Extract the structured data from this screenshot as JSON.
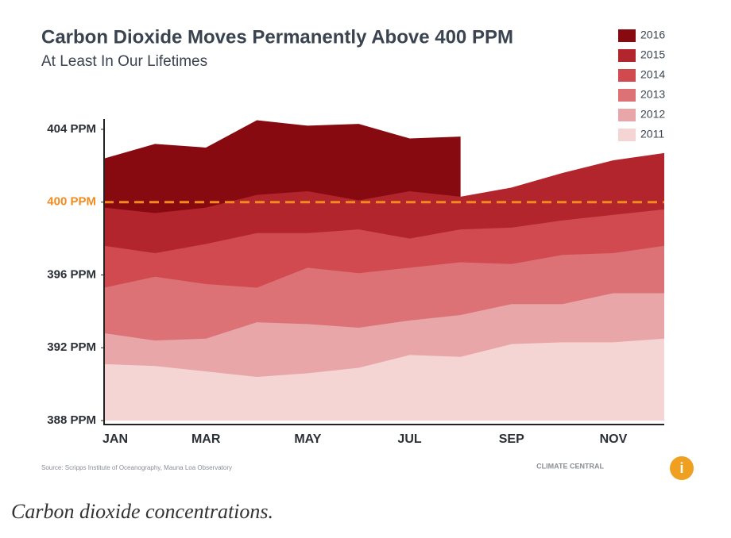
{
  "chart_data": {
    "type": "area",
    "title": "Carbon Dioxide Moves Permanently Above 400 PPM",
    "subtitle": "At Least In Our Lifetimes",
    "categories": [
      "JAN",
      null,
      "MAR",
      null,
      "MAY",
      null,
      "JUL",
      null,
      "SEP",
      null,
      "NOV",
      null
    ],
    "series": [
      {
        "name": "2016",
        "color": "#870a10",
        "values": [
          402.4,
          403.2,
          403.0,
          404.5,
          404.2,
          404.3,
          403.5,
          403.6,
          null,
          null,
          null,
          null
        ]
      },
      {
        "name": "2015",
        "color": "#b3252c",
        "values": [
          399.7,
          399.4,
          399.7,
          400.4,
          400.6,
          400.1,
          400.6,
          400.3,
          400.8,
          401.6,
          402.3,
          402.7
        ]
      },
      {
        "name": "2014",
        "color": "#d04a50",
        "values": [
          397.6,
          397.2,
          397.7,
          398.3,
          398.3,
          398.5,
          398.0,
          398.5,
          398.6,
          399.0,
          399.3,
          399.6
        ]
      },
      {
        "name": "2013",
        "color": "#dc7176",
        "values": [
          395.3,
          395.9,
          395.5,
          395.3,
          396.4,
          396.1,
          396.4,
          396.7,
          396.6,
          397.1,
          397.2,
          397.6
        ]
      },
      {
        "name": "2012",
        "color": "#e8a6a8",
        "values": [
          392.8,
          392.4,
          392.5,
          393.4,
          393.3,
          393.1,
          393.5,
          393.8,
          394.4,
          394.4,
          395.0,
          395.0
        ]
      },
      {
        "name": "2011",
        "color": "#f5d4d4",
        "values": [
          391.1,
          391.0,
          390.7,
          390.4,
          390.6,
          390.9,
          391.6,
          391.5,
          392.2,
          392.3,
          392.3,
          392.5
        ]
      }
    ],
    "ylim": [
      388,
      404
    ],
    "yticks": [
      {
        "value": 388,
        "label": "388 PPM"
      },
      {
        "value": 392,
        "label": "392 PPM"
      },
      {
        "value": 396,
        "label": "396 PPM"
      },
      {
        "value": 400,
        "label": "400 PPM"
      },
      {
        "value": 404,
        "label": "404 PPM"
      }
    ],
    "threshold": 400,
    "threshold_color": "#f28a1e",
    "legend": "top-right",
    "source": "Source: Scripps Institute of Oceanography, Mauna Loa Observatory",
    "logo": "CLIMATE CENTRAL"
  },
  "caption": "Carbon dioxide concentrations."
}
